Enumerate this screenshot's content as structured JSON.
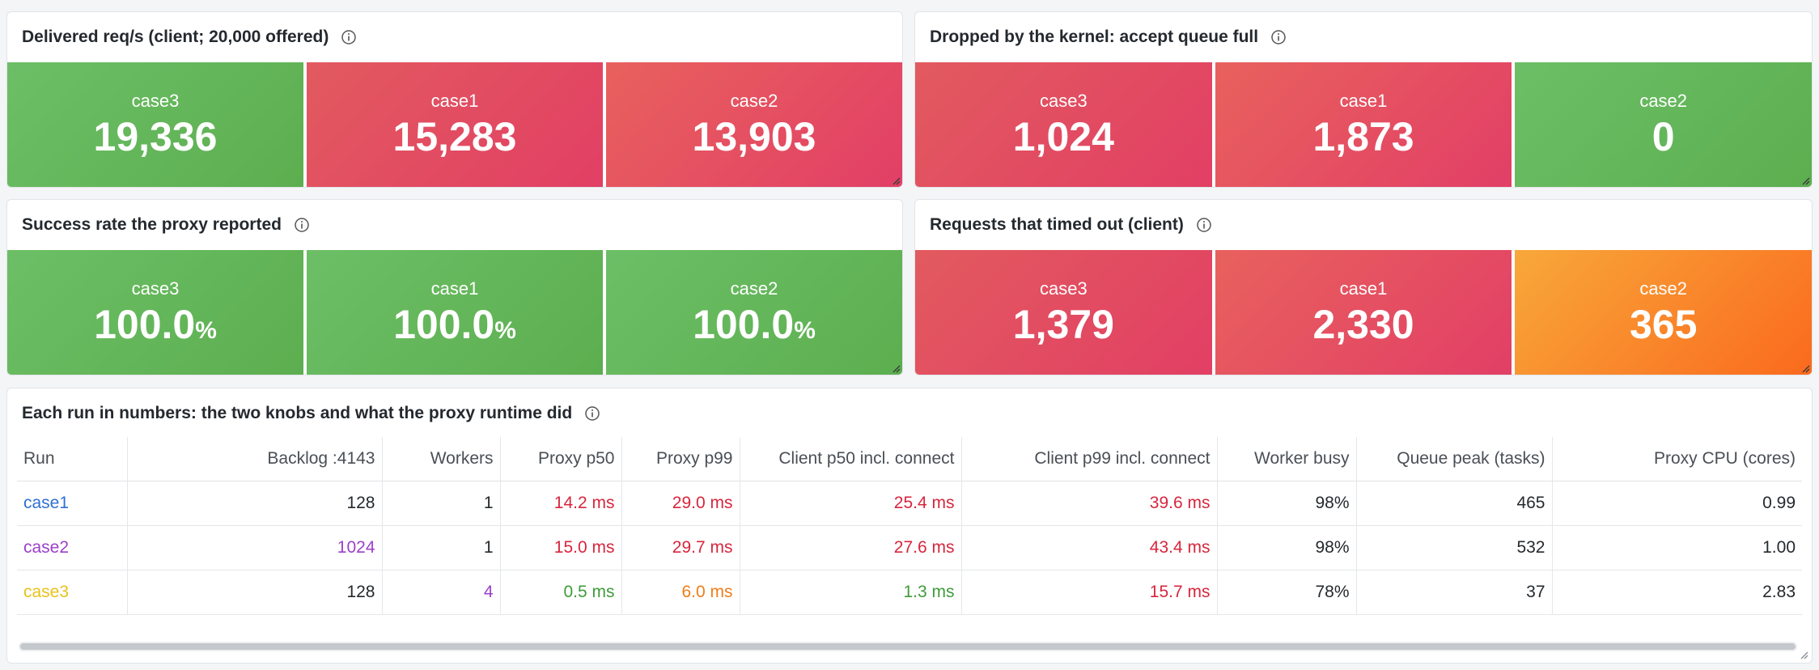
{
  "panels": {
    "delivered": {
      "title": "Delivered req/s (client; 20,000 offered)",
      "stats": [
        {
          "label": "case3",
          "value": "19,336",
          "color": "green"
        },
        {
          "label": "case1",
          "value": "15,283",
          "color": "red"
        },
        {
          "label": "case2",
          "value": "13,903",
          "color": "red"
        }
      ]
    },
    "dropped": {
      "title": "Dropped by the kernel: accept queue full",
      "stats": [
        {
          "label": "case3",
          "value": "1,024",
          "color": "red"
        },
        {
          "label": "case1",
          "value": "1,873",
          "color": "red"
        },
        {
          "label": "case2",
          "value": "0",
          "color": "green"
        }
      ]
    },
    "success": {
      "title": "Success rate the proxy reported",
      "stats": [
        {
          "label": "case3",
          "value": "100.0",
          "unit": "%",
          "color": "green"
        },
        {
          "label": "case1",
          "value": "100.0",
          "unit": "%",
          "color": "green"
        },
        {
          "label": "case2",
          "value": "100.0",
          "unit": "%",
          "color": "green"
        }
      ]
    },
    "timedout": {
      "title": "Requests that timed out (client)",
      "stats": [
        {
          "label": "case3",
          "value": "1,379",
          "color": "red"
        },
        {
          "label": "case1",
          "value": "2,330",
          "color": "red"
        },
        {
          "label": "case2",
          "value": "365",
          "color": "orange"
        }
      ]
    }
  },
  "table": {
    "title": "Each run in numbers: the two knobs and what the proxy runtime did",
    "columns": [
      "Run",
      "Backlog :4143",
      "Workers",
      "Proxy p50",
      "Proxy p99",
      "Client p50 incl. connect",
      "Client p99 incl. connect",
      "Worker busy",
      "Queue peak (tasks)",
      "Proxy CPU (cores)"
    ],
    "rows": [
      {
        "run": "case1",
        "backlog": "128",
        "workers": "1",
        "proxy_p50": "14.2 ms",
        "proxy_p99": "29.0 ms",
        "client_p50": "25.4 ms",
        "client_p99": "39.6 ms",
        "worker_busy": "98%",
        "queue_peak": "465",
        "proxy_cpu": "0.99"
      },
      {
        "run": "case2",
        "backlog": "1024",
        "workers": "1",
        "proxy_p50": "15.0 ms",
        "proxy_p99": "29.7 ms",
        "client_p50": "27.6 ms",
        "client_p99": "43.4 ms",
        "worker_busy": "98%",
        "queue_peak": "532",
        "proxy_cpu": "1.00"
      },
      {
        "run": "case3",
        "backlog": "128",
        "workers": "4",
        "proxy_p50": "0.5 ms",
        "proxy_p99": "6.0 ms",
        "client_p50": "1.3 ms",
        "client_p99": "15.7 ms",
        "worker_busy": "78%",
        "queue_peak": "37",
        "proxy_cpu": "2.83"
      }
    ]
  },
  "colors": {
    "green": "#5cae4f",
    "red": "#e23f64",
    "orange": "#fa6a1e",
    "case1": "#2f6fd6",
    "case2": "#9b40c9",
    "case3": "#e8c21a"
  },
  "icons": {
    "info": "info-circle-icon",
    "resize": "resize-corner-icon"
  }
}
